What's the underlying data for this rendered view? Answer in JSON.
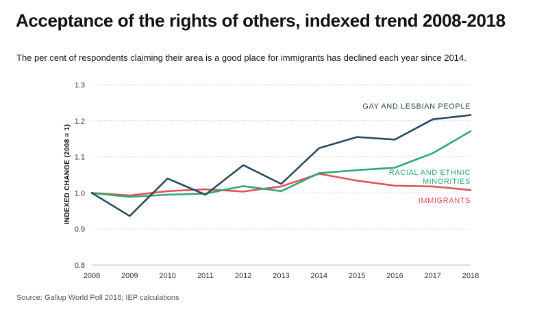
{
  "chart_data": {
    "type": "line",
    "title": "Acceptance of the rights of others, indexed trend 2008-2018",
    "subtitle": "The per cent of respondents claiming their area is a good place for immigrants has declined each year since 2014.",
    "xlabel": "",
    "ylabel": "INDEXED CHANGE (2008 = 1)",
    "x": [
      "2008",
      "2009",
      "2010",
      "2011",
      "2012",
      "2013",
      "2014",
      "2015",
      "2016",
      "2017",
      "2018"
    ],
    "ylim": [
      0.8,
      1.3
    ],
    "yticks": [
      "0.8",
      "0.9",
      "1.0",
      "1.1",
      "1.2",
      "1.3"
    ],
    "grid": true,
    "series": [
      {
        "name": "GAY AND LESBIAN PEOPLE",
        "color": "#2b4a5e",
        "values": [
          1.0,
          0.936,
          1.04,
          0.995,
          1.077,
          1.025,
          1.124,
          1.155,
          1.148,
          1.204,
          1.216
        ]
      },
      {
        "name": "RACIAL AND ETHNIC MINORITIES",
        "color": "#2ea874",
        "values": [
          1.0,
          0.989,
          0.995,
          0.998,
          1.019,
          1.005,
          1.055,
          1.063,
          1.07,
          1.11,
          1.171
        ]
      },
      {
        "name": "IMMIGRANTS",
        "color": "#e0535a",
        "values": [
          1.0,
          0.993,
          1.005,
          1.01,
          1.004,
          1.018,
          1.053,
          1.034,
          1.02,
          1.018,
          1.008
        ]
      }
    ],
    "annotations": [
      {
        "lines": [
          "GAY AND LESBIAN PEOPLE"
        ],
        "series": 0
      },
      {
        "lines": [
          "RACIAL AND ETHNIC",
          "MINORITIES"
        ],
        "series": 1
      },
      {
        "lines": [
          "IMMIGRANTS"
        ],
        "series": 2
      }
    ]
  },
  "source": "Source: Gallup World Poll 2018; IEP calculations"
}
